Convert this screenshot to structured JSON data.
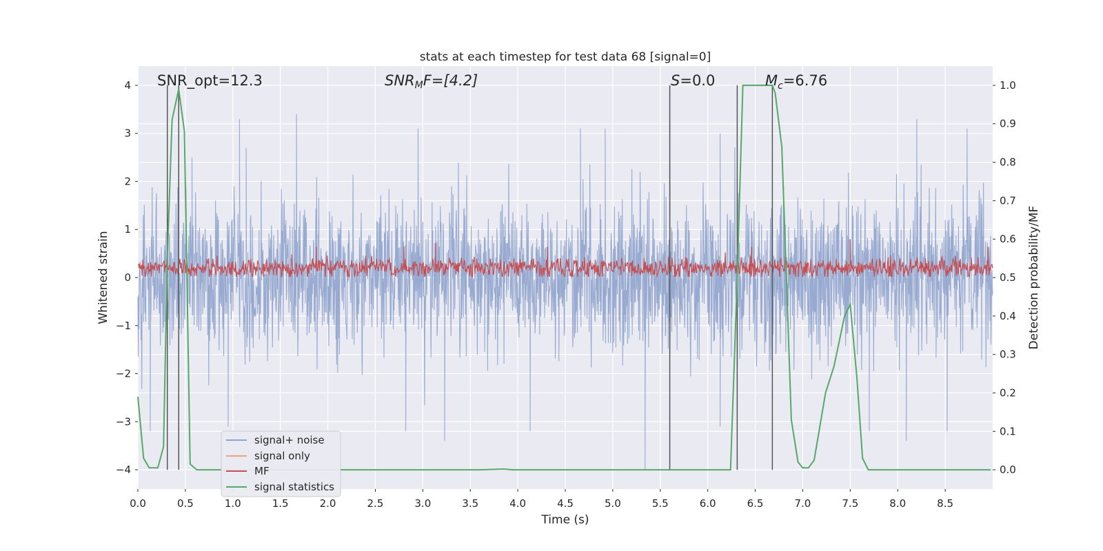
{
  "chart_data": {
    "type": "line",
    "title": "stats at each timestep for test data 68 [signal=0]",
    "xlabel": "Time (s)",
    "ylabel": "Whitened strain",
    "y2label": "Detection probability/MF",
    "xlim": [
      0.0,
      9.0
    ],
    "ylim": [
      -4.4,
      4.4
    ],
    "y2lim": [
      -0.05,
      1.05
    ],
    "xticks": [
      0.0,
      0.5,
      1.0,
      1.5,
      2.0,
      2.5,
      3.0,
      3.5,
      4.0,
      4.5,
      5.0,
      5.5,
      6.0,
      6.5,
      7.0,
      7.5,
      8.0,
      8.5
    ],
    "xtick_labels": [
      "0.0",
      "0.5",
      "1.0",
      "1.5",
      "2.0",
      "2.5",
      "3.0",
      "3.5",
      "4.0",
      "4.5",
      "5.0",
      "5.5",
      "6.0",
      "6.5",
      "7.0",
      "7.5",
      "8.0",
      "8.5"
    ],
    "yticks": [
      -4,
      -3,
      -2,
      -1,
      0,
      1,
      2,
      3,
      4
    ],
    "ytick_labels": [
      "−4",
      "−3",
      "−2",
      "−1",
      "0",
      "1",
      "2",
      "3",
      "4"
    ],
    "y2ticks": [
      0.0,
      0.1,
      0.2,
      0.3,
      0.4,
      0.5,
      0.6,
      0.7,
      0.8,
      0.9,
      1.0
    ],
    "y2tick_labels": [
      "0.0",
      "0.1",
      "0.2",
      "0.3",
      "0.4",
      "0.5",
      "0.6",
      "0.7",
      "0.8",
      "0.9",
      "1.0"
    ],
    "grid": true,
    "legend_position": "lower-left",
    "annotations": {
      "snr_opt": "SNR_opt=12.3",
      "snr_mf_main": "SNR",
      "snr_mf_sub": "M",
      "snr_mf_rest": "F=[4.2]",
      "s_italic": "S",
      "s_rest": "=0.0",
      "mc_main": "M",
      "mc_sub": "c",
      "mc_rest": "=6.76"
    },
    "vertical_markers": [
      {
        "x": 0.31,
        "y_top": 4.0
      },
      {
        "x": 0.43,
        "y_top": 4.0
      },
      {
        "x": 5.6,
        "y_top": 4.0
      },
      {
        "x": 6.31,
        "y_top": 4.0
      },
      {
        "x": 6.68,
        "y_top": 4.0
      }
    ],
    "series": [
      {
        "name": "signal+ noise",
        "color": "#8fa3cc",
        "axis": "left",
        "description": "dense whitened strain, approx range -4 to 3.5",
        "spikes": [
          {
            "x": 0.31,
            "y": 2.7
          },
          {
            "x": 0.57,
            "y": 2.5
          },
          {
            "x": 1.07,
            "y": 3.3
          },
          {
            "x": 1.14,
            "y": 2.7
          },
          {
            "x": 1.67,
            "y": 3.4
          },
          {
            "x": 2.95,
            "y": 3.1
          },
          {
            "x": 4.66,
            "y": 3.1
          },
          {
            "x": 4.92,
            "y": 3.1
          },
          {
            "x": 5.6,
            "y": 4.0
          },
          {
            "x": 6.13,
            "y": 3.0
          },
          {
            "x": 6.31,
            "y": 2.2
          },
          {
            "x": 8.2,
            "y": 3.3
          },
          {
            "x": 8.73,
            "y": 3.1
          },
          {
            "x": 0.13,
            "y": -3.2
          },
          {
            "x": 0.95,
            "y": -3.1
          },
          {
            "x": 2.82,
            "y": -3.2
          },
          {
            "x": 3.23,
            "y": -3.4
          },
          {
            "x": 4.13,
            "y": -3.2
          },
          {
            "x": 5.34,
            "y": -4.0
          },
          {
            "x": 6.13,
            "y": -3.1
          },
          {
            "x": 7.7,
            "y": -3.2
          },
          {
            "x": 8.09,
            "y": -3.4
          },
          {
            "x": 8.52,
            "y": -3.2
          }
        ]
      },
      {
        "name": "signal only",
        "color": "#e8a37f",
        "axis": "left",
        "x": [],
        "y": []
      },
      {
        "name": "MF",
        "color": "#c44e52",
        "axis": "right",
        "description": "matched filter output, fluctuating approx 0.50 to 0.58",
        "spikes": [
          {
            "x": 0.31,
            "y": 0.58
          },
          {
            "x": 1.62,
            "y": 0.56
          },
          {
            "x": 1.88,
            "y": 0.58
          },
          {
            "x": 2.8,
            "y": 0.58
          },
          {
            "x": 3.13,
            "y": 0.59
          },
          {
            "x": 4.31,
            "y": 0.58
          },
          {
            "x": 6.46,
            "y": 0.58
          },
          {
            "x": 7.5,
            "y": 0.6
          },
          {
            "x": 8.95,
            "y": 0.58
          }
        ]
      },
      {
        "name": "signal statistics",
        "color": "#55a868",
        "axis": "right",
        "x": [
          0.0,
          0.06,
          0.12,
          0.21,
          0.27,
          0.31,
          0.36,
          0.43,
          0.49,
          0.55,
          0.62,
          1.0,
          2.0,
          3.0,
          3.6,
          3.85,
          3.95,
          4.4,
          5.0,
          5.5,
          6.0,
          6.24,
          6.31,
          6.37,
          6.68,
          6.71,
          6.78,
          6.88,
          6.95,
          7.0,
          7.06,
          7.12,
          7.24,
          7.33,
          7.44,
          7.5,
          7.57,
          7.63,
          7.69,
          8.0,
          8.5,
          8.98
        ],
        "y": [
          0.19,
          0.03,
          0.005,
          0.005,
          0.06,
          0.55,
          0.91,
          0.99,
          0.88,
          0.015,
          0.0,
          0.0,
          0.0,
          0.0,
          0.0,
          0.002,
          0.0,
          0.0,
          0.0,
          0.0,
          0.0,
          0.0,
          0.5,
          1.0,
          1.0,
          0.98,
          0.84,
          0.13,
          0.02,
          0.005,
          0.005,
          0.025,
          0.2,
          0.27,
          0.4,
          0.43,
          0.24,
          0.03,
          0.0,
          0.0,
          0.0,
          0.0
        ]
      }
    ]
  }
}
